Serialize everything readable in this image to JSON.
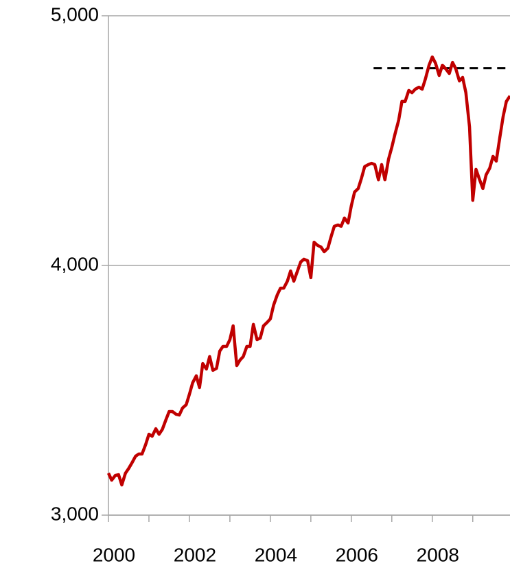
{
  "chart_data": {
    "type": "line",
    "x": [
      2000,
      2000.08,
      2000.17,
      2000.25,
      2000.33,
      2000.42,
      2000.5,
      2000.58,
      2000.67,
      2000.75,
      2000.83,
      2000.92,
      2001,
      2001.08,
      2001.17,
      2001.25,
      2001.33,
      2001.42,
      2001.5,
      2001.58,
      2001.67,
      2001.75,
      2001.83,
      2001.92,
      2002,
      2002.08,
      2002.17,
      2002.25,
      2002.33,
      2002.42,
      2002.5,
      2002.58,
      2002.67,
      2002.75,
      2002.83,
      2002.92,
      2003,
      2003.08,
      2003.17,
      2003.25,
      2003.33,
      2003.42,
      2003.5,
      2003.58,
      2003.67,
      2003.75,
      2003.83,
      2003.92,
      2004,
      2004.08,
      2004.17,
      2004.25,
      2004.33,
      2004.42,
      2004.5,
      2004.58,
      2004.67,
      2004.75,
      2004.83,
      2004.92,
      2005,
      2005.08,
      2005.17,
      2005.25,
      2005.33,
      2005.42,
      2005.5,
      2005.58,
      2005.67,
      2005.75,
      2005.83,
      2005.92,
      2006,
      2006.08,
      2006.17,
      2006.25,
      2006.33,
      2006.42,
      2006.5,
      2006.58,
      2006.67,
      2006.75,
      2006.83,
      2006.92,
      2007,
      2007.08,
      2007.17,
      2007.25,
      2007.33,
      2007.42,
      2007.5,
      2007.58,
      2007.67,
      2007.75,
      2007.83,
      2007.92,
      2008,
      2008.08,
      2008.17,
      2008.25,
      2008.33,
      2008.42,
      2008.5,
      2008.58,
      2008.67,
      2008.75,
      2008.83,
      2008.92,
      2009,
      2009.08,
      2009.17,
      2009.25,
      2009.33,
      2009.42,
      2009.5,
      2009.58,
      2009.67,
      2009.75,
      2009.83,
      2009.92
    ],
    "values": [
      3168,
      3140,
      3159,
      3162,
      3121,
      3168,
      3187,
      3209,
      3236,
      3245,
      3245,
      3283,
      3324,
      3316,
      3346,
      3324,
      3343,
      3382,
      3415,
      3415,
      3404,
      3401,
      3429,
      3442,
      3484,
      3530,
      3558,
      3511,
      3607,
      3585,
      3635,
      3580,
      3588,
      3657,
      3676,
      3676,
      3703,
      3758,
      3599,
      3621,
      3635,
      3676,
      3676,
      3764,
      3703,
      3709,
      3758,
      3772,
      3786,
      3841,
      3882,
      3909,
      3909,
      3937,
      3978,
      3937,
      3978,
      4014,
      4025,
      4019,
      3951,
      4093,
      4080,
      4074,
      4055,
      4069,
      4115,
      4157,
      4162,
      4157,
      4190,
      4170,
      4239,
      4294,
      4308,
      4349,
      4396,
      4404,
      4409,
      4404,
      4343,
      4404,
      4343,
      4426,
      4473,
      4527,
      4582,
      4657,
      4657,
      4701,
      4692,
      4706,
      4714,
      4706,
      4747,
      4802,
      4835,
      4810,
      4761,
      4802,
      4788,
      4769,
      4813,
      4788,
      4739,
      4753,
      4692,
      4555,
      4261,
      4385,
      4343,
      4308,
      4363,
      4390,
      4437,
      4418,
      4514,
      4596,
      4657,
      4679
    ],
    "color": "#c00000",
    "reference_line": {
      "value": 4790,
      "x": [
        2006.55,
        2009.92
      ],
      "color": "#000000"
    },
    "xlim": [
      2000,
      2009.92
    ],
    "xticks": [
      2000,
      2002,
      2004,
      2006,
      2008
    ],
    "xminor_ticks": [
      2001,
      2003,
      2005,
      2007,
      2009
    ],
    "ylim": [
      3000,
      5000
    ],
    "yticks": [
      {
        "value": 3000,
        "label": "3,000"
      },
      {
        "value": 4000,
        "label": "4,000"
      },
      {
        "value": 5000,
        "label": "5,000"
      }
    ],
    "grid": true
  }
}
